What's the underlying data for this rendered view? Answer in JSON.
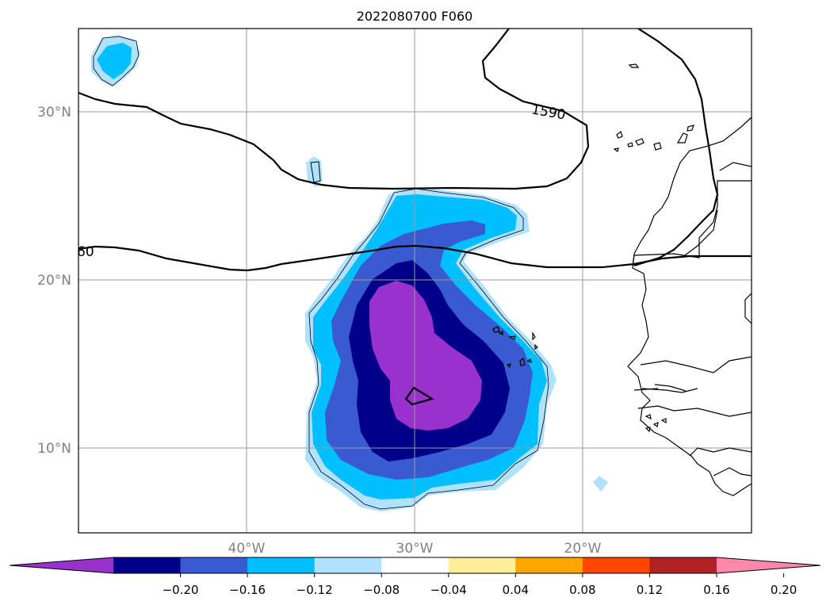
{
  "title": "2022080700 F060",
  "map": {
    "lat_labels": [
      {
        "lat": 30,
        "text": "30°N"
      },
      {
        "lat": 20,
        "text": "20°N"
      },
      {
        "lat": 10,
        "text": "10°N"
      }
    ],
    "lon_labels": [
      {
        "lon": -40,
        "text": "40°W"
      },
      {
        "lon": -30,
        "text": "30°W"
      },
      {
        "lon": -20,
        "text": "20°W"
      }
    ],
    "gridlines": true,
    "contour_labels": [
      "1590",
      "60"
    ]
  },
  "colorbar": {
    "tick_labels": [
      "−0.20",
      "−0.16",
      "−0.12",
      "−0.08",
      "−0.04",
      "0.04",
      "0.08",
      "0.12",
      "0.16",
      "0.20"
    ],
    "colors": [
      "#9932cc",
      "#00008b",
      "#3a5bd0",
      "#00bfff",
      "#b0e2ff",
      "#ffffff",
      "#ffee99",
      "#ffa500",
      "#ff4500",
      "#b22222",
      "#ff88aa"
    ],
    "extend": "both"
  },
  "chart_data": {
    "type": "heatmap",
    "title": "2022080700 F060",
    "lon_range": [
      -50,
      -10
    ],
    "lat_range": [
      5,
      35
    ],
    "contour_levels": [
      -0.2,
      -0.16,
      -0.12,
      -0.08,
      -0.04,
      0.04,
      0.08,
      0.12,
      0.16,
      0.2
    ],
    "line_contours": [
      "1590",
      "60"
    ]
  }
}
